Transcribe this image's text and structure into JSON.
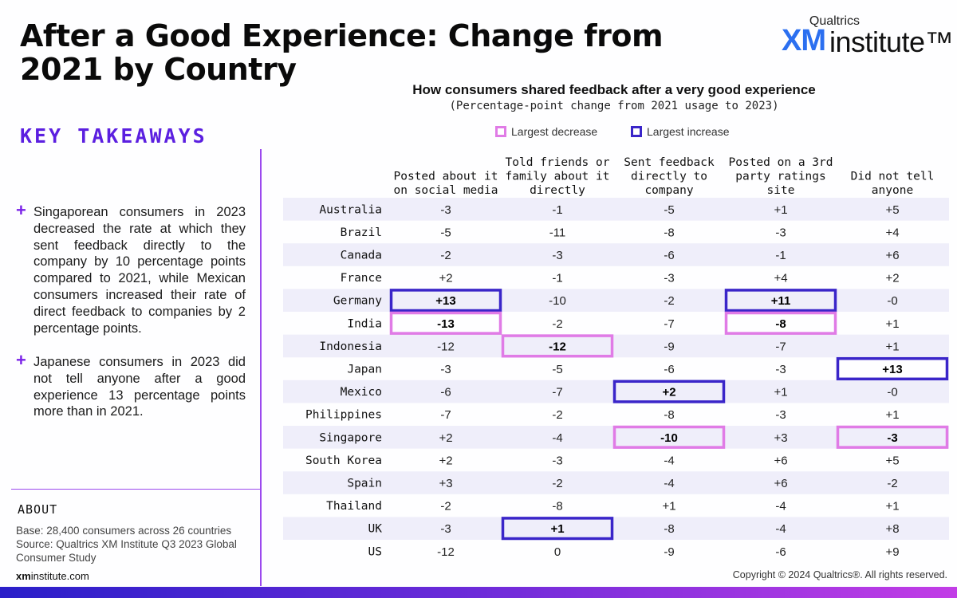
{
  "title": "After a Good Experience: Change from 2021 by Country",
  "logo": {
    "brand": "Qualtrics",
    "xm": "XM",
    "institute": "institute™"
  },
  "key_takeaways": {
    "heading": "KEY TAKEAWAYS",
    "items": [
      "Singaporean consumers in 2023 decreased the rate at which they sent feedback directly to the company by 10 percentage points compared to 2021, while Mexican consumers increased their rate of direct feedback to companies by 2 percentage points.",
      "Japanese consumers in 2023 did not tell anyone after a good experience 13 percentage points more than in 2021."
    ]
  },
  "about": {
    "heading": "ABOUT",
    "text": "Base: 28,400 consumers across 26 countries Source: Qualtrics XM Institute Q3 2023 Global Consumer Study"
  },
  "site": {
    "bold": "xm",
    "rest": "institute.com"
  },
  "copyright": "Copyright © 2024 Qualtrics®. All rights reserved.",
  "colors": {
    "decrease": "#e07be6",
    "increase": "#3a25c9",
    "stripe": "#efeefa"
  },
  "chart_data": {
    "type": "table",
    "title": "How consumers shared feedback after a very good experience",
    "subtitle": "(Percentage-point change from 2021 usage to 2023)",
    "legend": {
      "decrease": "Largest decrease",
      "increase": "Largest increase"
    },
    "columns": [
      [
        "Posted about it",
        "on social media"
      ],
      [
        "Told friends or",
        "family about it",
        "directly"
      ],
      [
        "Sent feedback",
        "directly to",
        "company"
      ],
      [
        "Posted on a 3rd",
        "party ratings",
        "site"
      ],
      [
        "Did not tell",
        "anyone"
      ]
    ],
    "rows": [
      {
        "country": "Australia",
        "values": [
          "-3",
          "-1",
          "-5",
          "+1",
          "+5"
        ]
      },
      {
        "country": "Brazil",
        "values": [
          "-5",
          "-11",
          "-8",
          "-3",
          "+4"
        ]
      },
      {
        "country": "Canada",
        "values": [
          "-2",
          "-3",
          "-6",
          "-1",
          "+6"
        ]
      },
      {
        "country": "France",
        "values": [
          "+2",
          "-1",
          "-3",
          "+4",
          "+2"
        ]
      },
      {
        "country": "Germany",
        "values": [
          "+13",
          "-10",
          "-2",
          "+11",
          "-0"
        ]
      },
      {
        "country": "India",
        "values": [
          "-13",
          "-2",
          "-7",
          "-8",
          "+1"
        ]
      },
      {
        "country": "Indonesia",
        "values": [
          "-12",
          "-12",
          "-9",
          "-7",
          "+1"
        ]
      },
      {
        "country": "Japan",
        "values": [
          "-3",
          "-5",
          "-6",
          "-3",
          "+13"
        ]
      },
      {
        "country": "Mexico",
        "values": [
          "-6",
          "-7",
          "+2",
          "+1",
          "-0"
        ]
      },
      {
        "country": "Philippines",
        "values": [
          "-7",
          "-2",
          "-8",
          "-3",
          "+1"
        ]
      },
      {
        "country": "Singapore",
        "values": [
          "+2",
          "-4",
          "-10",
          "+3",
          "-3"
        ]
      },
      {
        "country": "South Korea",
        "values": [
          "+2",
          "-3",
          "-4",
          "+6",
          "+5"
        ]
      },
      {
        "country": "Spain",
        "values": [
          "+3",
          "-2",
          "-4",
          "+6",
          "-2"
        ]
      },
      {
        "country": "Thailand",
        "values": [
          "-2",
          "-8",
          "+1",
          "-4",
          "+1"
        ]
      },
      {
        "country": "UK",
        "values": [
          "-3",
          "+1",
          "-8",
          "-4",
          "+8"
        ]
      },
      {
        "country": "US",
        "values": [
          "-12",
          "0",
          "-9",
          "-6",
          "+9"
        ]
      }
    ],
    "highlights": [
      {
        "row": 4,
        "col": 0,
        "kind": "increase"
      },
      {
        "row": 4,
        "col": 3,
        "kind": "increase"
      },
      {
        "row": 7,
        "col": 4,
        "kind": "increase"
      },
      {
        "row": 8,
        "col": 2,
        "kind": "increase"
      },
      {
        "row": 14,
        "col": 1,
        "kind": "increase"
      },
      {
        "row": 5,
        "col": 0,
        "kind": "decrease"
      },
      {
        "row": 5,
        "col": 3,
        "kind": "decrease"
      },
      {
        "row": 6,
        "col": 1,
        "kind": "decrease"
      },
      {
        "row": 10,
        "col": 2,
        "kind": "decrease"
      },
      {
        "row": 10,
        "col": 4,
        "kind": "decrease"
      }
    ]
  }
}
